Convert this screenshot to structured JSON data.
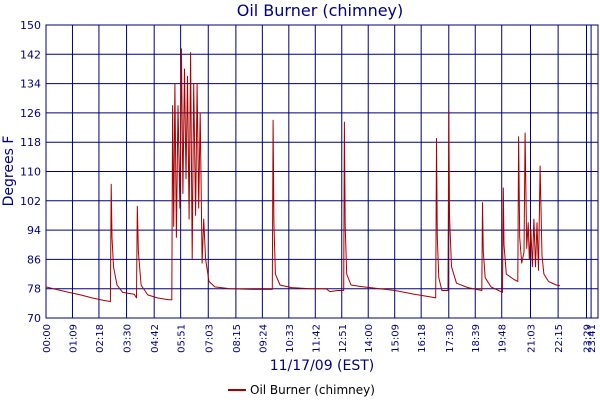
{
  "chart_data": {
    "type": "line",
    "title": "Oil Burner (chimney)",
    "xlabel": "11/17/09 (EST)",
    "ylabel": "Degrees F",
    "ylim": [
      70,
      150
    ],
    "yticks": [
      70,
      78,
      86,
      94,
      102,
      110,
      118,
      126,
      134,
      142,
      150
    ],
    "xlim": [
      "00:00",
      "23:59"
    ],
    "xticks": [
      "00:00",
      "01:09",
      "02:18",
      "03:30",
      "04:42",
      "05:51",
      "07:03",
      "08:15",
      "09:24",
      "10:33",
      "11:42",
      "12:51",
      "14:00",
      "15:09",
      "16:18",
      "17:30",
      "18:39",
      "19:48",
      "21:03",
      "22:15",
      "23:29",
      "23:41"
    ],
    "grid": true,
    "legend_position": "bottom",
    "series": [
      {
        "name": "Oil Burner (chimney)",
        "color": "#aa0000",
        "points": [
          [
            "00:00",
            78.5
          ],
          [
            "00:30",
            77.7
          ],
          [
            "01:00",
            77.0
          ],
          [
            "01:30",
            76.3
          ],
          [
            "02:00",
            75.5
          ],
          [
            "02:30",
            74.8
          ],
          [
            "02:48",
            74.5
          ],
          [
            "02:50",
            106.5
          ],
          [
            "02:52",
            92
          ],
          [
            "02:56",
            84
          ],
          [
            "03:05",
            79
          ],
          [
            "03:20",
            77
          ],
          [
            "03:50",
            76.5
          ],
          [
            "03:56",
            75.5
          ],
          [
            "03:58",
            100.5
          ],
          [
            "04:01",
            88
          ],
          [
            "04:08",
            79
          ],
          [
            "04:25",
            76.3
          ],
          [
            "04:50",
            75.5
          ],
          [
            "05:20",
            75.0
          ],
          [
            "05:28",
            75.0
          ],
          [
            "05:30",
            128
          ],
          [
            "05:33",
            95
          ],
          [
            "05:36",
            134
          ],
          [
            "05:40",
            92
          ],
          [
            "05:44",
            128
          ],
          [
            "05:49",
            100
          ],
          [
            "05:53",
            143.5
          ],
          [
            "05:57",
            104
          ],
          [
            "06:01",
            138
          ],
          [
            "06:05",
            108
          ],
          [
            "06:09",
            136
          ],
          [
            "06:13",
            97
          ],
          [
            "06:17",
            142.5
          ],
          [
            "06:21",
            86
          ],
          [
            "06:25",
            134
          ],
          [
            "06:30",
            98
          ],
          [
            "06:34",
            134
          ],
          [
            "06:38",
            100
          ],
          [
            "06:42",
            126
          ],
          [
            "06:47",
            85
          ],
          [
            "06:51",
            97
          ],
          [
            "06:56",
            86
          ],
          [
            "07:05",
            80
          ],
          [
            "07:20",
            78.5
          ],
          [
            "08:00",
            78.0
          ],
          [
            "09:00",
            77.8
          ],
          [
            "09:50",
            77.8
          ],
          [
            "09:52",
            124
          ],
          [
            "09:54",
            96
          ],
          [
            "09:58",
            82
          ],
          [
            "10:10",
            79
          ],
          [
            "10:40",
            78.3
          ],
          [
            "11:30",
            78.0
          ],
          [
            "12:10",
            78.0
          ],
          [
            "12:20",
            77.2
          ],
          [
            "12:40",
            77.5
          ],
          [
            "12:56",
            77.5
          ],
          [
            "12:58",
            123.5
          ],
          [
            "13:00",
            95
          ],
          [
            "13:04",
            82
          ],
          [
            "13:15",
            79
          ],
          [
            "13:40",
            78.6
          ],
          [
            "14:30",
            78.0
          ],
          [
            "15:10",
            77.5
          ],
          [
            "16:00",
            76.5
          ],
          [
            "16:40",
            75.8
          ],
          [
            "16:56",
            75.5
          ],
          [
            "16:58",
            119
          ],
          [
            "17:00",
            92
          ],
          [
            "17:04",
            81
          ],
          [
            "17:12",
            77.5
          ],
          [
            "17:28",
            77.5
          ],
          [
            "17:30",
            126.5
          ],
          [
            "17:32",
            98
          ],
          [
            "17:37",
            84
          ],
          [
            "17:50",
            79.5
          ],
          [
            "18:20",
            78.3
          ],
          [
            "18:56",
            77.5
          ],
          [
            "18:58",
            101.5
          ],
          [
            "19:00",
            88
          ],
          [
            "19:05",
            81
          ],
          [
            "19:20",
            78.5
          ],
          [
            "19:40",
            77.5
          ],
          [
            "19:50",
            77.0
          ],
          [
            "19:52",
            105.5
          ],
          [
            "19:54",
            90
          ],
          [
            "20:00",
            82
          ],
          [
            "20:20",
            80.5
          ],
          [
            "20:30",
            80.0
          ],
          [
            "20:32",
            119.5
          ],
          [
            "20:35",
            92
          ],
          [
            "20:40",
            85
          ],
          [
            "20:46",
            88
          ],
          [
            "20:49",
            120.5
          ],
          [
            "20:53",
            89
          ],
          [
            "20:57",
            96
          ],
          [
            "21:00",
            86
          ],
          [
            "21:04",
            94
          ],
          [
            "21:08",
            84
          ],
          [
            "21:12",
            97
          ],
          [
            "21:16",
            84
          ],
          [
            "21:20",
            96
          ],
          [
            "21:24",
            83
          ],
          [
            "21:28",
            111.5
          ],
          [
            "21:33",
            87
          ],
          [
            "21:38",
            82
          ],
          [
            "21:50",
            80
          ],
          [
            "22:10",
            79
          ],
          [
            "22:20",
            78.8
          ]
        ]
      }
    ]
  }
}
